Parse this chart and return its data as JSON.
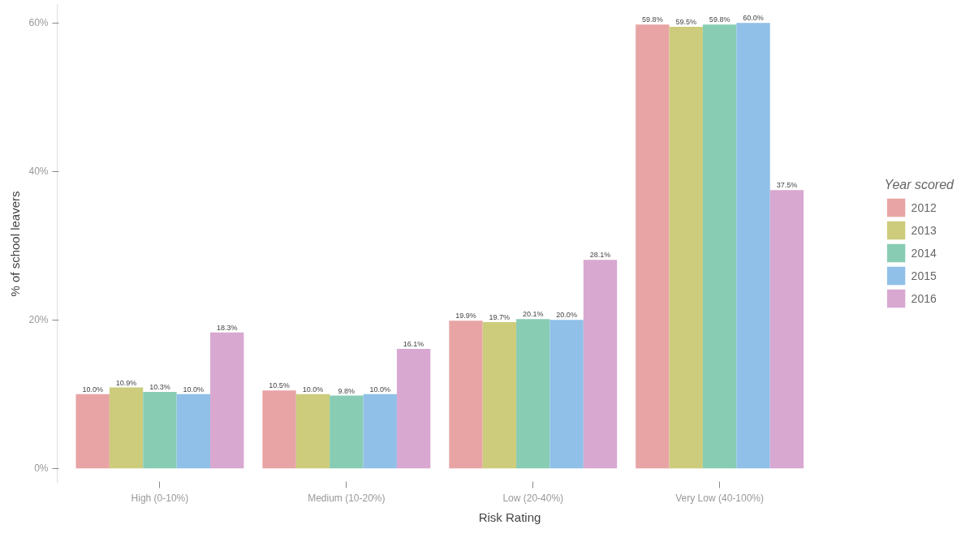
{
  "chart_data": {
    "type": "bar",
    "xlabel": "Risk Rating",
    "ylabel": "% of school leavers",
    "legend_title": "Year scored",
    "legend": "right",
    "grid": false,
    "categories": [
      "High (0-10%)",
      "Medium (10-20%)",
      "Low (20-40%)",
      "Very Low (40-100%)"
    ],
    "ylim": [
      -2,
      62.5
    ],
    "yticks": [
      {
        "value": 0,
        "label": "0%"
      },
      {
        "value": 20,
        "label": "20%"
      },
      {
        "value": 40,
        "label": "40%"
      },
      {
        "value": 60,
        "label": "60%"
      }
    ],
    "series": [
      {
        "name": "2012",
        "color": "#e8a4a4",
        "values": [
          10.0,
          10.5,
          19.9,
          59.8
        ],
        "value_labels": [
          "10.0%",
          "10.5%",
          "19.9%",
          "59.8%"
        ]
      },
      {
        "name": "2013",
        "color": "#cccc7c",
        "values": [
          10.9,
          10.0,
          19.7,
          59.5
        ],
        "value_labels": [
          "10.9%",
          "10.0%",
          "19.7%",
          "59.5%"
        ]
      },
      {
        "name": "2014",
        "color": "#88ccb4",
        "values": [
          10.3,
          9.8,
          20.1,
          59.8
        ],
        "value_labels": [
          "10.3%",
          "9.8%",
          "20.1%",
          "59.8%"
        ]
      },
      {
        "name": "2015",
        "color": "#90c0e8",
        "values": [
          10.0,
          10.0,
          20.0,
          60.0
        ],
        "value_labels": [
          "10.0%",
          "10.0%",
          "20.0%",
          "60.0%"
        ]
      },
      {
        "name": "2016",
        "color": "#d8a8d0",
        "values": [
          18.3,
          16.1,
          28.1,
          37.5
        ],
        "value_labels": [
          "18.3%",
          "16.1%",
          "28.1%",
          "37.5%"
        ]
      }
    ]
  }
}
